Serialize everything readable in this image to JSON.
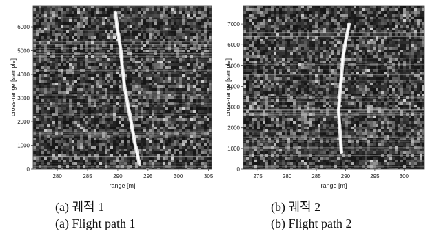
{
  "captions": {
    "a_korean": "(a) 궤적 1",
    "a_english": "(a) Flight path 1",
    "b_korean": "(b) 궤적 2",
    "b_english": "(b) Flight path 2"
  },
  "colors": {
    "background_dark": "#3a3a3a",
    "trace": "#ffffff"
  },
  "chart_data": [
    {
      "type": "heatmap",
      "panel": "a",
      "xlabel": "range [m]",
      "ylabel": "cross-range [sample]",
      "xlim": [
        276,
        305.5
      ],
      "ylim": [
        0,
        6900
      ],
      "xticks": [
        280,
        285,
        290,
        295,
        300,
        305
      ],
      "yticks": [
        0,
        1000,
        2000,
        3000,
        4000,
        5000,
        6000
      ],
      "colormap": "gray",
      "trace": {
        "x": [
          289.6,
          290.0,
          290.5,
          290.7,
          291.1,
          291.6,
          292.2,
          292.9,
          293.6
        ],
        "y": [
          6600,
          5800,
          5000,
          4400,
          3500,
          2800,
          2000,
          1000,
          200
        ]
      }
    },
    {
      "type": "heatmap",
      "panel": "b",
      "xlabel": "range [m]",
      "ylabel": "cross-range [sample]",
      "xlim": [
        272.5,
        303.5
      ],
      "ylim": [
        0,
        7900
      ],
      "xticks": [
        275,
        280,
        285,
        290,
        295,
        300
      ],
      "yticks": [
        0,
        1000,
        2000,
        3000,
        4000,
        5000,
        6000,
        7000
      ],
      "colormap": "gray",
      "trace": {
        "x": [
          290.6,
          290.1,
          289.6,
          289.3,
          289.0,
          288.8,
          289.0,
          289.2,
          289.3
        ],
        "y": [
          7000,
          6300,
          5500,
          4500,
          3500,
          2800,
          2000,
          1200,
          800
        ]
      }
    }
  ]
}
